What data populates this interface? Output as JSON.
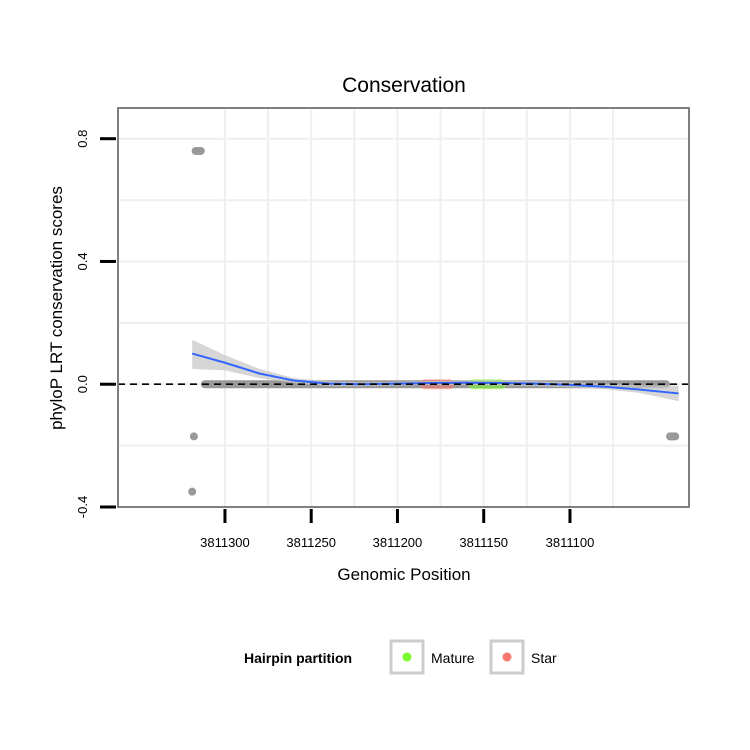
{
  "chart_data": {
    "type": "scatter",
    "title": "Conservation",
    "xlabel": "Genomic Position",
    "ylabel": "phyloP LRT conservation scores",
    "x_reversed": true,
    "xlim": [
      3811031,
      3811362
    ],
    "ylim": [
      -0.4,
      0.9
    ],
    "x_ticks": [
      3811300,
      3811250,
      3811200,
      3811150,
      3811100
    ],
    "x_tick_labels": [
      "3811300",
      "3811250",
      "3811200",
      "3811150",
      "3811100"
    ],
    "y_ticks": [
      -0.4,
      0.0,
      0.4,
      0.8
    ],
    "y_tick_labels": [
      "-0.4",
      "0.0",
      "0.4",
      "0.8"
    ],
    "grid": true,
    "reference_line": {
      "y": 0.0,
      "style": "dashed"
    },
    "points": [
      {
        "x": 3811314,
        "y": 0.76
      },
      {
        "x": 3811315,
        "y": 0.76
      },
      {
        "x": 3811316,
        "y": 0.76
      },
      {
        "x": 3811317,
        "y": 0.76
      },
      {
        "x": 3811318,
        "y": -0.17
      },
      {
        "x": 3811319,
        "y": -0.35
      },
      {
        "x": 3811039,
        "y": -0.17
      },
      {
        "x": 3811040,
        "y": -0.17
      },
      {
        "x": 3811041,
        "y": -0.17
      },
      {
        "x": 3811042,
        "y": -0.17
      }
    ],
    "zero_band": {
      "x_from": 3811042,
      "x_to": 3811314,
      "y": 0.0
    },
    "partitions": [
      {
        "name": "Star",
        "x_from": 3811167,
        "x_to": 3811187
      },
      {
        "name": "Mature",
        "x_from": 3811137,
        "x_to": 3811159
      }
    ],
    "smooth_line": {
      "x": [
        3811319,
        3811300,
        3811280,
        3811260,
        3811240,
        3811220,
        3811200,
        3811180,
        3811160,
        3811140,
        3811120,
        3811100,
        3811080,
        3811060,
        3811037
      ],
      "y": [
        0.1,
        0.07,
        0.035,
        0.012,
        0.002,
        0.0,
        0.002,
        0.004,
        0.005,
        0.004,
        0.002,
        -0.002,
        -0.008,
        -0.017,
        -0.03
      ],
      "ci_low": [
        0.05,
        0.045,
        0.02,
        0.004,
        -0.006,
        -0.006,
        -0.004,
        -0.002,
        -0.002,
        -0.004,
        -0.006,
        -0.01,
        -0.016,
        -0.028,
        -0.055
      ],
      "ci_high": [
        0.145,
        0.095,
        0.05,
        0.02,
        0.01,
        0.006,
        0.008,
        0.01,
        0.012,
        0.012,
        0.01,
        0.006,
        0.002,
        -0.004,
        -0.005
      ]
    },
    "legend": {
      "title": "Hairpin partition",
      "position": "bottom",
      "items": [
        {
          "label": "Mature",
          "color": "#7CFC2E"
        },
        {
          "label": "Star",
          "color": "#F8766D"
        }
      ]
    },
    "colors": {
      "point": "#999999",
      "smooth": "#3366FF",
      "ci_band": "#C8C8C8",
      "grid": "#EFEFEF",
      "panel_border": "#7F7F7F"
    }
  }
}
